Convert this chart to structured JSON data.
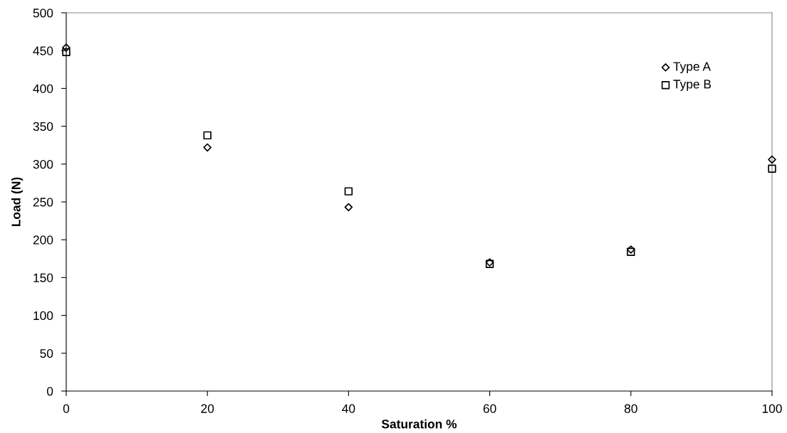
{
  "chart_data": {
    "type": "scatter",
    "xlabel": "Saturation %",
    "ylabel": "Load (N)",
    "x": [
      0,
      20,
      40,
      60,
      80,
      100
    ],
    "series": [
      {
        "name": "Type A",
        "color": "#000000",
        "marker": "diamond",
        "values": [
          454,
          322,
          243,
          170,
          187,
          306
        ]
      },
      {
        "name": "Type B",
        "color": "#000000",
        "marker": "square",
        "values": [
          448,
          338,
          264,
          168,
          184,
          294
        ]
      }
    ],
    "xlim": [
      0,
      100
    ],
    "xticks": [
      0,
      20,
      40,
      60,
      80,
      100
    ],
    "ylim": [
      0,
      500
    ],
    "yticks": [
      0,
      50,
      100,
      150,
      200,
      250,
      300,
      350,
      400,
      450,
      500
    ],
    "grid": false,
    "legend": "top right"
  }
}
